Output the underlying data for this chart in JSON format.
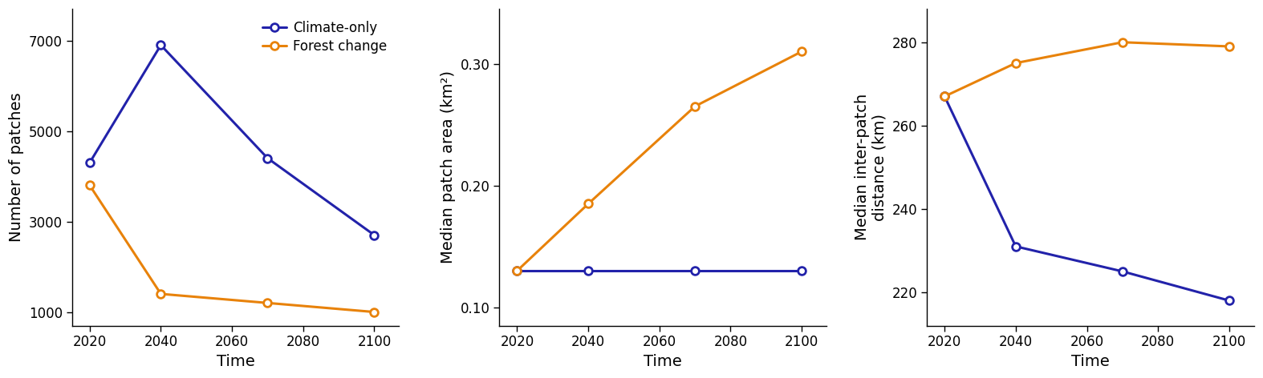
{
  "x": [
    2020,
    2040,
    2070,
    2100
  ],
  "panel1": {
    "ylabel": "Number of patches",
    "climate_only": [
      4300,
      6900,
      4400,
      2700
    ],
    "forest_change": [
      3800,
      1400,
      1200,
      1000
    ],
    "yticks": [
      1000,
      3000,
      5000,
      7000
    ],
    "ylim": [
      700,
      7700
    ]
  },
  "panel2": {
    "ylabel": "Median patch area (km²)",
    "climate_only": [
      0.13,
      0.13,
      0.13,
      0.13
    ],
    "forest_change": [
      0.13,
      0.185,
      0.265,
      0.31
    ],
    "yticks": [
      0.1,
      0.2,
      0.3
    ],
    "ylim": [
      0.085,
      0.345
    ]
  },
  "panel3": {
    "ylabel": "Median inter-patch\ndistance (km)",
    "climate_only": [
      267,
      231,
      225,
      218
    ],
    "forest_change": [
      267,
      275,
      280,
      279
    ],
    "yticks": [
      220,
      240,
      260,
      280
    ],
    "ylim": [
      212,
      288
    ]
  },
  "xlabel": "Time",
  "color_climate": "#2222aa",
  "color_forest": "#e8820a",
  "legend_labels": [
    "Climate-only",
    "Forest change"
  ],
  "linewidth": 2.2,
  "markersize": 7,
  "bg_color": "#ffffff",
  "label_fontsize": 14,
  "tick_fontsize": 12,
  "legend_fontsize": 12
}
